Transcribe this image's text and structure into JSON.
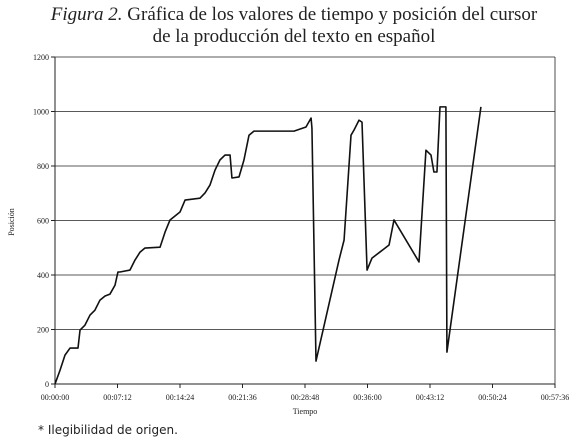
{
  "chart_data": {
    "type": "line",
    "figure_label": "Figura 2.",
    "title_lines": [
      "Gráfica de los valores de tiempo y posición del cursor",
      "de la producción del texto en español"
    ],
    "y_label": "Posición",
    "x_label": "Tiempo",
    "footnote": "* Ilegibilidad de origen.",
    "xlim": [
      0,
      3456
    ],
    "ylim": [
      0,
      1200
    ],
    "xticks": [
      {
        "value": 0,
        "label": "00:00:00"
      },
      {
        "value": 432,
        "label": "00:07:12"
      },
      {
        "value": 864,
        "label": "00:14:24"
      },
      {
        "value": 1296,
        "label": "00:21:36"
      },
      {
        "value": 1728,
        "label": "00:28:48"
      },
      {
        "value": 2160,
        "label": "00:36:00"
      },
      {
        "value": 2592,
        "label": "00:43:12"
      },
      {
        "value": 3024,
        "label": "00:50:24"
      },
      {
        "value": 3456,
        "label": "00:57:36"
      }
    ],
    "yticks": [
      0,
      200,
      400,
      600,
      800,
      1000,
      1200
    ],
    "grid": true,
    "x": [
      0,
      35,
      69,
      104,
      159,
      173,
      207,
      242,
      276,
      311,
      346,
      380,
      415,
      435,
      449,
      518,
      553,
      588,
      622,
      726,
      761,
      795,
      864,
      899,
      1002,
      1037,
      1071,
      1106,
      1140,
      1175,
      1210,
      1223,
      1272,
      1306,
      1341,
      1375,
      1652,
      1735,
      1770,
      1776,
      1804,
      1963,
      1998,
      2046,
      2067,
      2101,
      2122,
      2157,
      2191,
      2309,
      2343,
      2516,
      2564,
      2599,
      2619,
      2640,
      2661,
      2702,
      2709,
      2944
    ],
    "series": [
      {
        "name": "Posición",
        "color": "#111111",
        "values": [
          0,
          51,
          106,
          132,
          132,
          198,
          216,
          253,
          271,
          308,
          323,
          330,
          363,
          411,
          411,
          418,
          455,
          484,
          499,
          502,
          558,
          602,
          631,
          675,
          682,
          701,
          730,
          785,
          822,
          840,
          840,
          756,
          760,
          822,
          913,
          928,
          928,
          943,
          976,
          939,
          84,
          455,
          528,
          913,
          932,
          968,
          961,
          418,
          462,
          510,
          602,
          448,
          858,
          840,
          778,
          778,
          1017,
          1017,
          117,
          1017
        ]
      }
    ]
  }
}
